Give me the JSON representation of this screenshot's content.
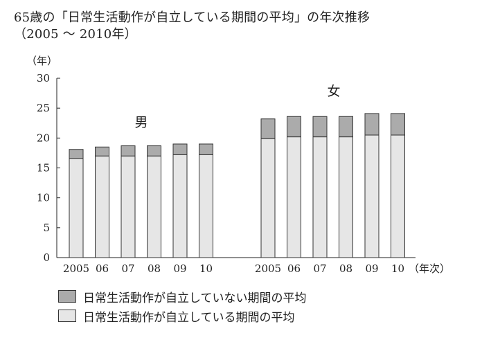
{
  "title": {
    "line1": "65歳の「日常生活動作が自立している期間の平均」の年次推移",
    "line2": "（2005 〜 2010年）"
  },
  "chart_data": {
    "type": "bar",
    "stacked": true,
    "y_unit_label": "（年）",
    "x_unit_label": "（年次）",
    "ylim": [
      0,
      30
    ],
    "yticks": [
      0,
      5,
      10,
      15,
      20,
      25,
      30
    ],
    "grid": false,
    "groups": [
      {
        "name": "男",
        "categories": [
          "2005",
          "06",
          "07",
          "08",
          "09",
          "10"
        ],
        "independent": [
          16.6,
          17.0,
          17.0,
          17.0,
          17.2,
          17.2
        ],
        "dependent": [
          1.5,
          1.5,
          1.7,
          1.7,
          1.8,
          1.8
        ]
      },
      {
        "name": "女",
        "categories": [
          "2005",
          "06",
          "07",
          "08",
          "09",
          "10"
        ],
        "independent": [
          19.9,
          20.2,
          20.2,
          20.2,
          20.5,
          20.5
        ],
        "dependent": [
          3.3,
          3.4,
          3.4,
          3.4,
          3.6,
          3.6
        ]
      }
    ],
    "series": [
      {
        "name": "日常生活動作が自立していない期間の平均",
        "key": "dependent",
        "color": "#ababab"
      },
      {
        "name": "日常生活動作が自立している期間の平均",
        "key": "independent",
        "color": "#e6e6e6"
      }
    ]
  }
}
